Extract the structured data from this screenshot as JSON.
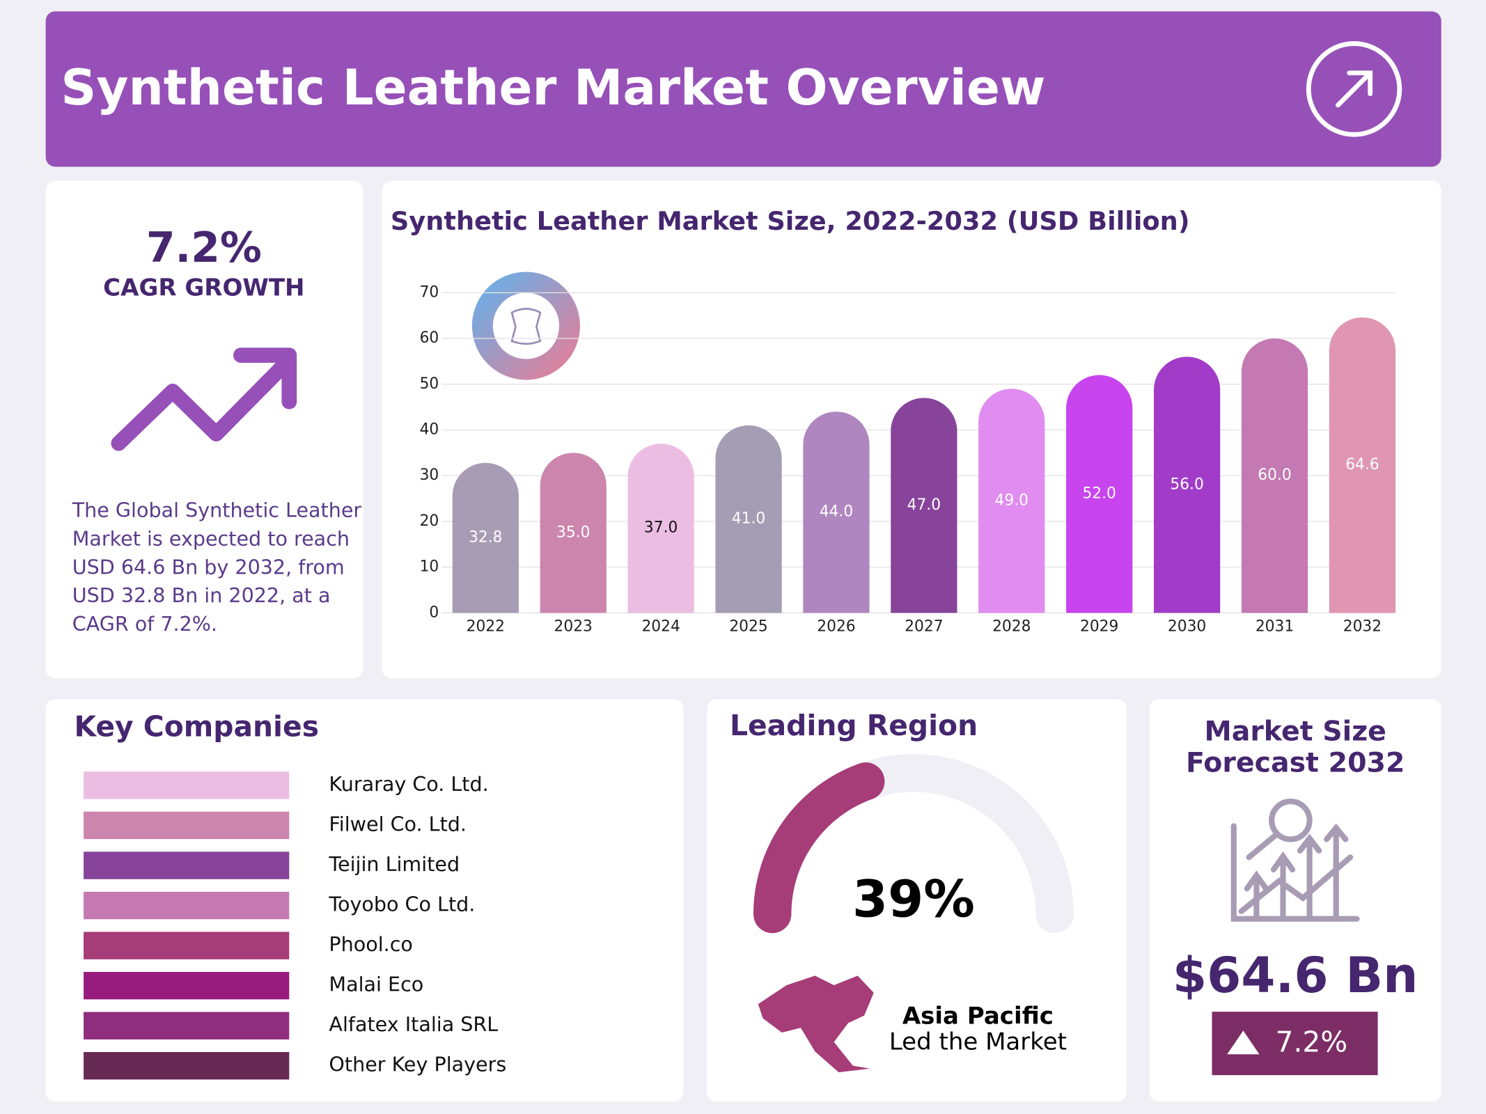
{
  "header": {
    "title": "Synthetic Leather Market Overview"
  },
  "growth": {
    "value": "7.2%",
    "label": "CAGR GROWTH",
    "description": [
      "The Global Synthetic Leather",
      "Market is expected to reach",
      "USD 64.6 Bn by 2032, from",
      "USD 32.8 Bn in 2022, at a",
      "CAGR of 7.2%."
    ]
  },
  "chart_data": {
    "type": "bar",
    "title": "Synthetic Leather Market Size, 2022-2032 (USD Billion)",
    "categories": [
      "2022",
      "2023",
      "2024",
      "2025",
      "2026",
      "2027",
      "2028",
      "2029",
      "2030",
      "2031",
      "2032"
    ],
    "values": [
      32.8,
      35,
      37,
      41,
      44,
      47,
      49,
      52,
      56,
      60,
      64.6
    ],
    "value_labels": [
      "32.8",
      "35.0",
      "37.0",
      "41.0",
      "44.0",
      "47.0",
      "49.0",
      "52.0",
      "56.0",
      "60.0",
      "64.6"
    ],
    "colors": [
      "#a89cb5",
      "#cc85ad",
      "#ecbde3",
      "#a59db4",
      "#b086c0",
      "#87449a",
      "#e08cf0",
      "#c844ef",
      "#a23cc8",
      "#c479b2",
      "#e096b0"
    ],
    "ylim": [
      0,
      70
    ],
    "yticks": [
      0,
      10,
      20,
      30,
      40,
      50,
      60,
      70
    ],
    "grid": true
  },
  "companies": {
    "title": "Key Companies",
    "items": [
      {
        "name": "Kuraray Co. Ltd.",
        "color": "#ecbde3"
      },
      {
        "name": "Filwel Co. Ltd.",
        "color": "#cc85ad"
      },
      {
        "name": "Teijin Limited",
        "color": "#87449a"
      },
      {
        "name": "Toyobo Co Ltd.",
        "color": "#c479b2"
      },
      {
        "name": "Phool.co",
        "color": "#a63c78"
      },
      {
        "name": "Malai Eco",
        "color": "#981c7e"
      },
      {
        "name": "Alfatex Italia SRL",
        "color": "#8f2d7e"
      },
      {
        "name": "Other Key Players",
        "color": "#662a55"
      }
    ]
  },
  "region": {
    "title": "Leading Region",
    "gauge": {
      "value": 39,
      "label": "39%"
    },
    "name": "Asia Pacific",
    "note": "Led the Market"
  },
  "forecast": {
    "title": [
      "Market Size",
      "Forecast 2032"
    ],
    "value": "$64.6 Bn",
    "growth": "7.2%"
  }
}
